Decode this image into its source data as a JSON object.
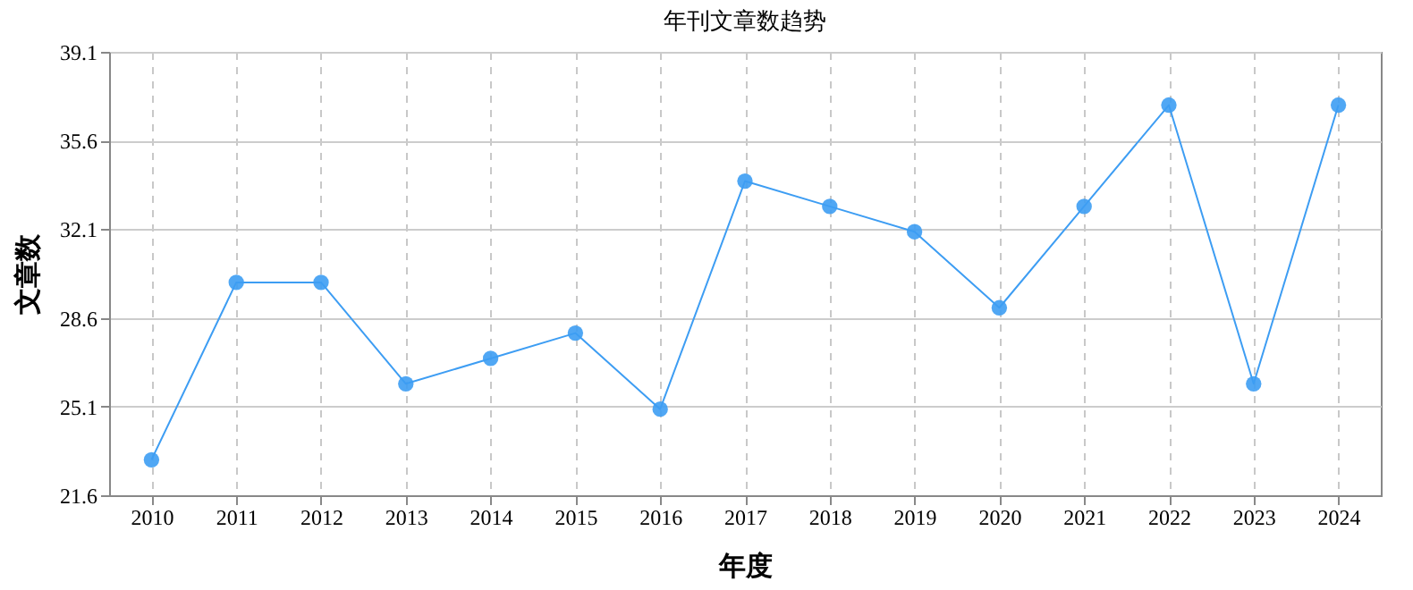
{
  "chart_data": {
    "type": "line",
    "title": "年刊文章数趋势",
    "xlabel": "年度",
    "ylabel": "文章数",
    "categories": [
      "2010",
      "2011",
      "2012",
      "2013",
      "2014",
      "2015",
      "2016",
      "2017",
      "2018",
      "2019",
      "2020",
      "2021",
      "2022",
      "2023",
      "2024"
    ],
    "series": [
      {
        "color": "#3d9df3",
        "values": [
          23,
          30,
          30,
          26,
          27,
          28,
          25,
          34,
          33,
          32,
          29,
          33,
          37,
          26,
          37
        ]
      }
    ],
    "ylim": [
      21.6,
      39.1
    ],
    "yticks": [
      21.6,
      25.1,
      28.6,
      32.1,
      35.6,
      39.1
    ],
    "grid": true,
    "marker": "circle",
    "line_style": "solid"
  }
}
